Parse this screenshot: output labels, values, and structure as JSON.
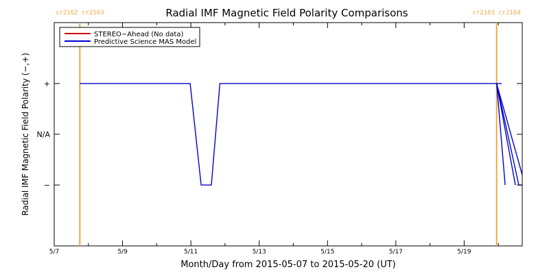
{
  "colors": {
    "background": "#ffffff",
    "axis": "#000000",
    "model_series": "#0000cc",
    "stereo_series": "#cc0000",
    "boundary": "#f2a640"
  },
  "chart_data": {
    "type": "line",
    "title": "Radial IMF Magnetic Field Polarity Comparisons",
    "xlabel": "Month/Day from 2015-05-07 to 2015-05-20 (UT)",
    "ylabel": "Radial IMF Magnetic Field Polarity (−,+)",
    "x_unit": "days since 2015-05-07 00:00 UT",
    "xlim": [
      0,
      13.7
    ],
    "ylim": [
      -2.2,
      2.2
    ],
    "x_ticks": [
      {
        "value": 0,
        "label": "5/7"
      },
      {
        "value": 2,
        "label": "5/9"
      },
      {
        "value": 4,
        "label": "5/11"
      },
      {
        "value": 6,
        "label": "5/13"
      },
      {
        "value": 8,
        "label": "5/15"
      },
      {
        "value": 10,
        "label": "5/17"
      },
      {
        "value": 12,
        "label": "5/19"
      }
    ],
    "y_ticks": [
      {
        "value": 1,
        "label": "+"
      },
      {
        "value": 0,
        "label": "N/A"
      },
      {
        "value": -1,
        "label": "−"
      }
    ],
    "carrington_boundaries": [
      {
        "x": 0.75,
        "label": "cr2162 cr2163"
      },
      {
        "x": 12.95,
        "label": "cr2163 cr2164"
      }
    ],
    "legend": {
      "position": "top-left",
      "entries": [
        {
          "name": "STEREO−Ahead (No data)",
          "color": "#cc0000"
        },
        {
          "name": "Predictive Science MAS Model",
          "color": "#0000cc"
        }
      ]
    },
    "series": [
      {
        "name": "Predictive Science MAS Model",
        "color": "#0000cc",
        "points": [
          [
            0.75,
            1
          ],
          [
            3.98,
            1
          ],
          [
            4.3,
            -1
          ],
          [
            4.6,
            -1
          ],
          [
            4.85,
            1
          ],
          [
            13.1,
            1
          ]
        ]
      },
      {
        "name": "",
        "color": "#0000cc",
        "points": [
          [
            12.95,
            1
          ],
          [
            13.2,
            -1
          ]
        ]
      },
      {
        "name": "",
        "color": "#0000cc",
        "points": [
          [
            12.95,
            1
          ],
          [
            13.5,
            -1
          ]
        ]
      },
      {
        "name": "",
        "color": "#0000cc",
        "points": [
          [
            12.95,
            1
          ],
          [
            13.6,
            -1
          ],
          [
            13.7,
            -1
          ]
        ]
      },
      {
        "name": "",
        "color": "#0000cc",
        "points": [
          [
            12.95,
            1
          ],
          [
            13.7,
            -0.8
          ]
        ]
      }
    ]
  }
}
